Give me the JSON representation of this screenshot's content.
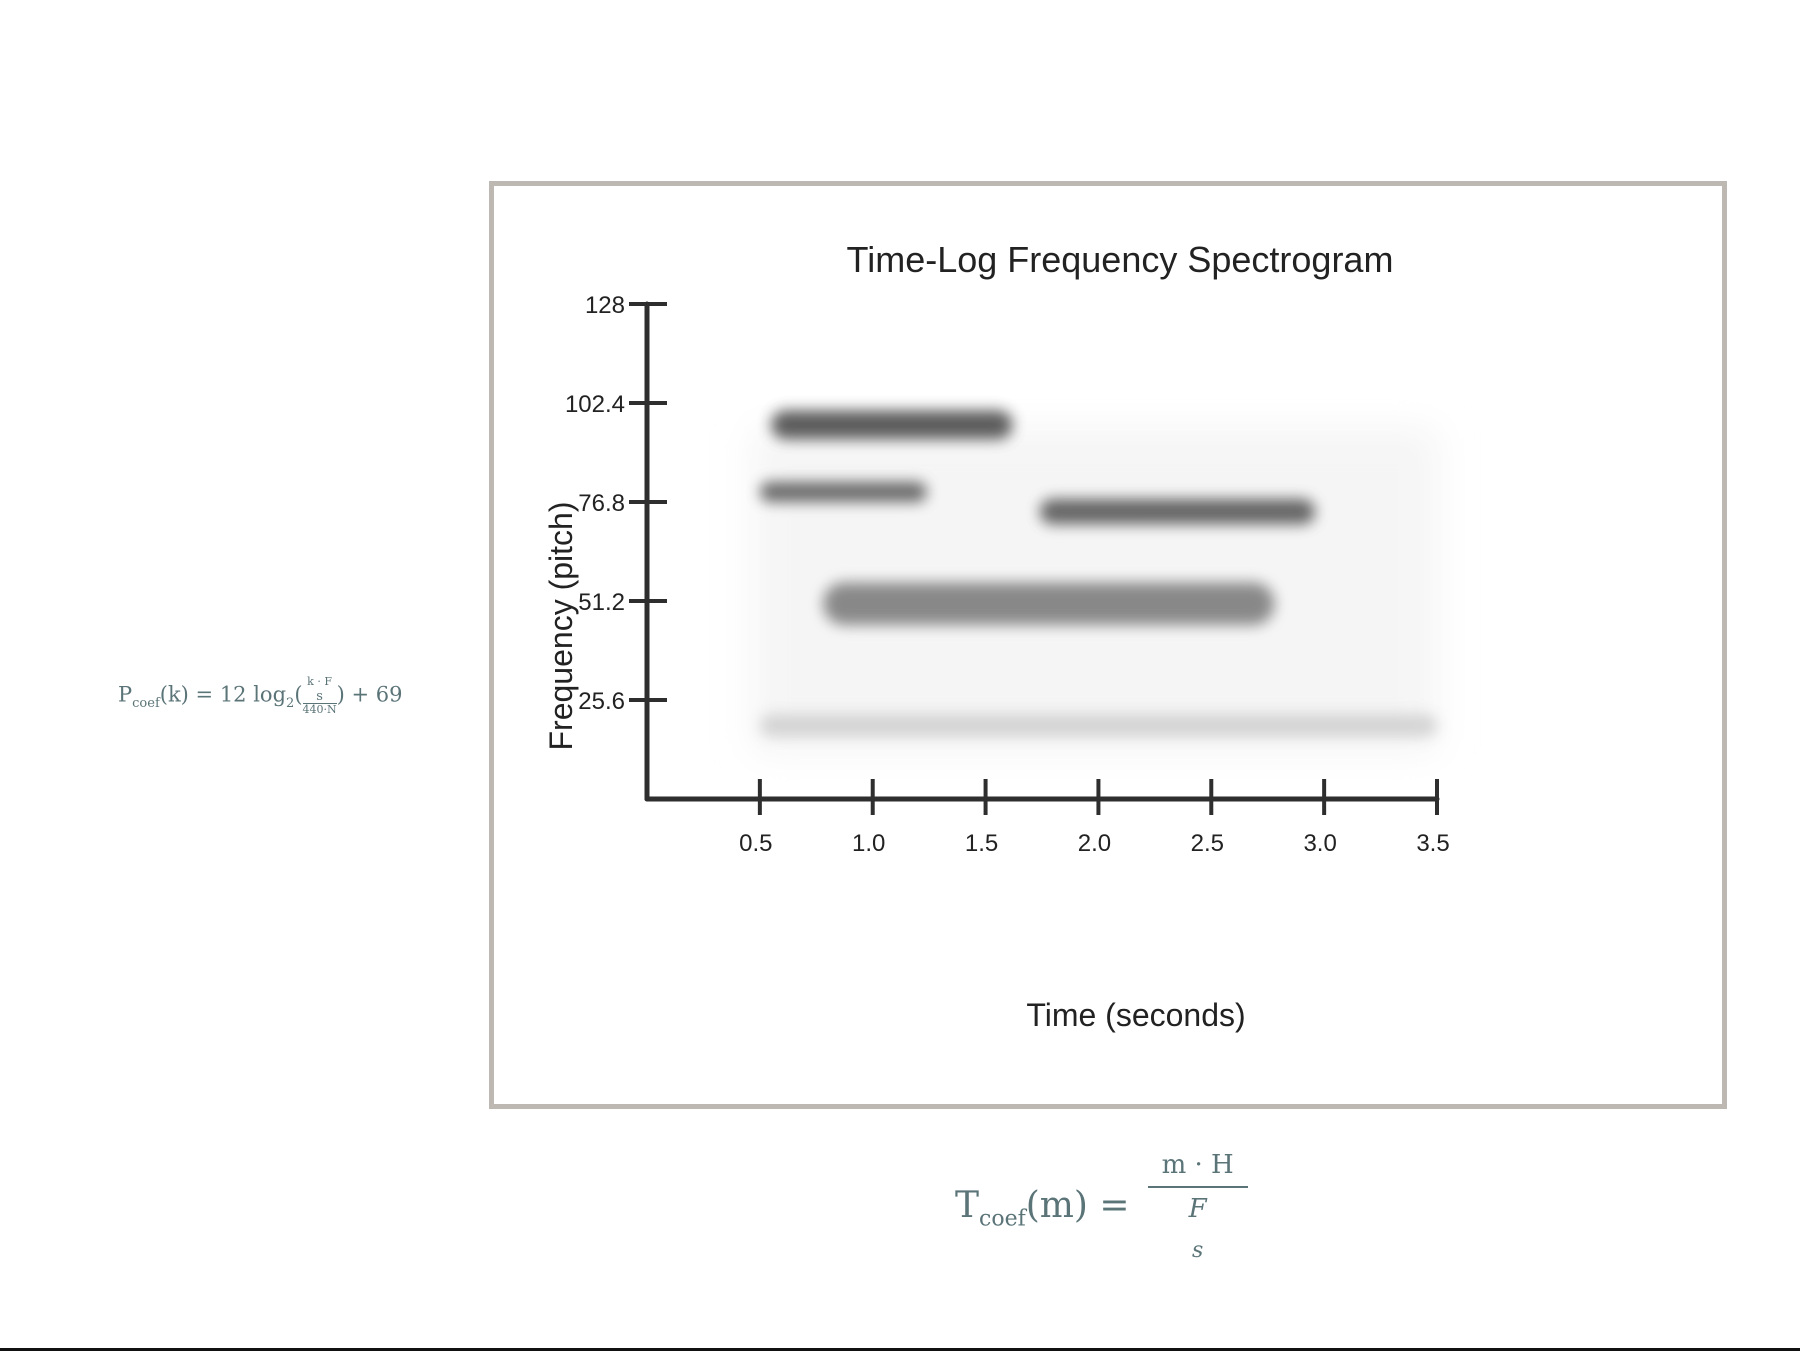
{
  "chart_data": {
    "type": "heatmap",
    "title": "Time-Log Frequency Spectrogram",
    "xlabel": "Time (seconds)",
    "ylabel": "Frequency (pitch)",
    "xlim": [
      0,
      3.5
    ],
    "ylim": [
      0,
      128
    ],
    "x_ticks": [
      0.5,
      1.0,
      1.5,
      2.0,
      2.5,
      3.0,
      3.5
    ],
    "x_tick_labels": [
      "0.5",
      "1.0",
      "1.5",
      "2.0",
      "2.5",
      "3.0",
      "3.5"
    ],
    "y_ticks": [
      25.6,
      51.2,
      76.8,
      102.4,
      128
    ],
    "y_tick_labels": [
      "25.6",
      "51.2",
      "76.8",
      "102.4",
      "128"
    ],
    "grid": false,
    "colormap": "grayscale",
    "regions": [
      {
        "t_start": 0.47,
        "t_end": 3.5,
        "pitch_low": 12.0,
        "pitch_high": 96.0,
        "intensity": 0.05
      },
      {
        "t_start": 0.55,
        "t_end": 1.62,
        "pitch_low": 93.0,
        "pitch_high": 100.5,
        "intensity": 0.85
      },
      {
        "t_start": 0.5,
        "t_end": 1.24,
        "pitch_low": 76.8,
        "pitch_high": 82.0,
        "intensity": 0.78
      },
      {
        "t_start": 1.74,
        "t_end": 2.96,
        "pitch_low": 71.0,
        "pitch_high": 77.6,
        "intensity": 0.8
      },
      {
        "t_start": 0.78,
        "t_end": 2.78,
        "pitch_low": 45.0,
        "pitch_high": 56.0,
        "intensity": 0.62
      },
      {
        "t_start": 0.5,
        "t_end": 3.5,
        "pitch_low": 16.0,
        "pitch_high": 22.0,
        "intensity": 0.22
      }
    ],
    "line_color": "#2e2e2e",
    "frame_color": "#bdb9b2"
  },
  "formulas": {
    "pitch": {
      "lhs": "P",
      "sub": "coef",
      "arg": "(k) = 12 log",
      "log_sub": "2",
      "num": "k · F",
      "num_sub": "s",
      "den": "440·N",
      "tail": "+ 69"
    },
    "time": {
      "lhs": "T",
      "sub": "coef",
      "arg": "(m) =",
      "num": "m · H",
      "den": "F",
      "den_sub": "s"
    }
  },
  "colors": {
    "formula": "#5b7478"
  }
}
